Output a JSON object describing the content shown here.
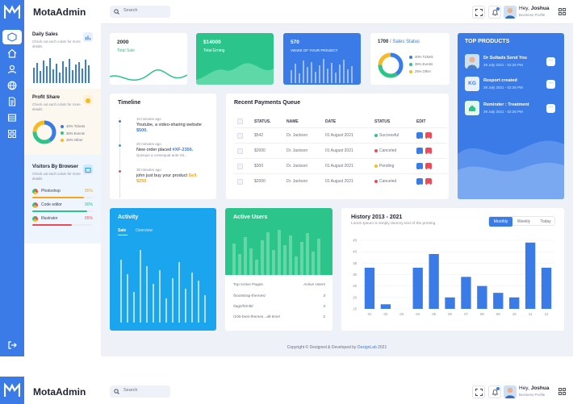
{
  "brand": {
    "name": "MotaAdmin"
  },
  "topbar": {
    "search_placeholder": "Search",
    "greeting": "Hey,",
    "user_name": "Joshua",
    "user_role": "Business Profile"
  },
  "sidebar": {
    "daily_sales": {
      "title": "Daily Sales",
      "desc": "Check out each colum for more details"
    },
    "profit_share": {
      "title": "Profit Share",
      "desc": "Check out each colum for more details",
      "legend": [
        {
          "label": "40% Tickets",
          "color": "#3a7be8"
        },
        {
          "label": "35% Events",
          "color": "#2bc48a"
        },
        {
          "label": "25% Other",
          "color": "#f7b924"
        }
      ]
    },
    "visitors": {
      "title": "Visitors By Browser",
      "desc": "Check out each colum for more details",
      "browsers": [
        {
          "name": "Photoshop",
          "pct": "85%",
          "value": 0.85,
          "color": "#f7a41d"
        },
        {
          "name": "Code editor",
          "pct": "90%",
          "value": 0.9,
          "color": "#2bc48a"
        },
        {
          "name": "Illustrator",
          "pct": "65%",
          "value": 0.65,
          "color": "#ec4b5a"
        }
      ]
    }
  },
  "stats": [
    {
      "value": "2000",
      "label": "Total Sale"
    },
    {
      "value": "$14000",
      "label": "Total Erning"
    },
    {
      "value": "570",
      "label": "VIEWS OF YOUR PROJECT"
    },
    {
      "value": "1700",
      "label": "/ Sales Status",
      "legend": [
        "40% Tickets",
        "35% Events",
        "25% Other"
      ]
    }
  ],
  "top_products": {
    "title": "TOP PRODUCTS",
    "items": [
      {
        "name": "Dr Sultads Send You",
        "date": "29 July 2021 - 02:26 PM",
        "badge": ""
      },
      {
        "name": "Resport created",
        "date": "29 July 2021 - 02:26 PM",
        "badge": "KG"
      },
      {
        "name": "Reminder : Treatment",
        "date": "29 July 2021 - 02:26 PM",
        "badge": ""
      }
    ],
    "more": "..."
  },
  "timeline": {
    "title": "Timeline",
    "items": [
      {
        "time": "10 minutes ago",
        "text": "Youtube, a video-sharing website",
        "highlight": "$500."
      },
      {
        "time": "20 minutes ago",
        "text": "New order placed",
        "highlight": "#XF-2356.",
        "sub": "Quisque a consequat ante Sit..."
      },
      {
        "time": "30 minutes ago",
        "text": "john just buy your product",
        "highlight": "Sell",
        "extra": "$250"
      }
    ]
  },
  "payments": {
    "title": "Recent Payments Queue",
    "headers": [
      "STATUS.",
      "NAME",
      "DATE",
      "STATUS",
      "EDIT"
    ],
    "rows": [
      {
        "amount": "$542",
        "name": "Dr. Jackson",
        "date": "01 August 2021",
        "status": "Successful",
        "color": "#2bc48a"
      },
      {
        "amount": "$2000",
        "name": "Dr. Jackson",
        "date": "01 August 2021",
        "status": "Canceled",
        "color": "#ec4b5a"
      },
      {
        "amount": "$300",
        "name": "Dr. Jackson",
        "date": "01 August 2021",
        "status": "Pending",
        "color": "#f7b924"
      },
      {
        "amount": "$2000",
        "name": "Dr. Jackson",
        "date": "01 August 2021",
        "status": "Canceled",
        "color": "#ec4b5a"
      }
    ]
  },
  "activity": {
    "title": "Activity",
    "tabs": [
      "Sale",
      "Overview"
    ]
  },
  "active_users": {
    "title": "Active Users",
    "col1": "Top Active Pages",
    "col2": "Active Users",
    "rows": [
      {
        "page": "/bootstrap-themes/",
        "count": "3"
      },
      {
        "page": "/tags/html5/",
        "count": "3"
      },
      {
        "page": "/100-best-themes...all-time/",
        "count": "2"
      }
    ]
  },
  "history": {
    "title": "History 2013 - 2021",
    "subtitle": "Lorem Ipsum is simply dummy text of the printing",
    "tabs": [
      "Monthly",
      "Weekly",
      "Today"
    ]
  },
  "chart_data": {
    "type": "bar",
    "title": "History 2013 - 2021",
    "categories": [
      "01",
      "02",
      "03",
      "04",
      "05",
      "06",
      "07",
      "08",
      "09",
      "10",
      "11",
      "12"
    ],
    "values": [
      33,
      17,
      15,
      33,
      39,
      20,
      29,
      25,
      22,
      20,
      44,
      33
    ],
    "ylim": [
      15,
      45
    ],
    "yticks": [
      15,
      20,
      25,
      30,
      35,
      40,
      45
    ],
    "color": "#3a7be8"
  },
  "footer": {
    "text": "Copyright © Designed & Developed by",
    "link": "DexignLab",
    "year": "2021"
  },
  "colors": {
    "primary": "#3a7be8",
    "green": "#2bc48a",
    "cyan": "#1aa5ee"
  }
}
